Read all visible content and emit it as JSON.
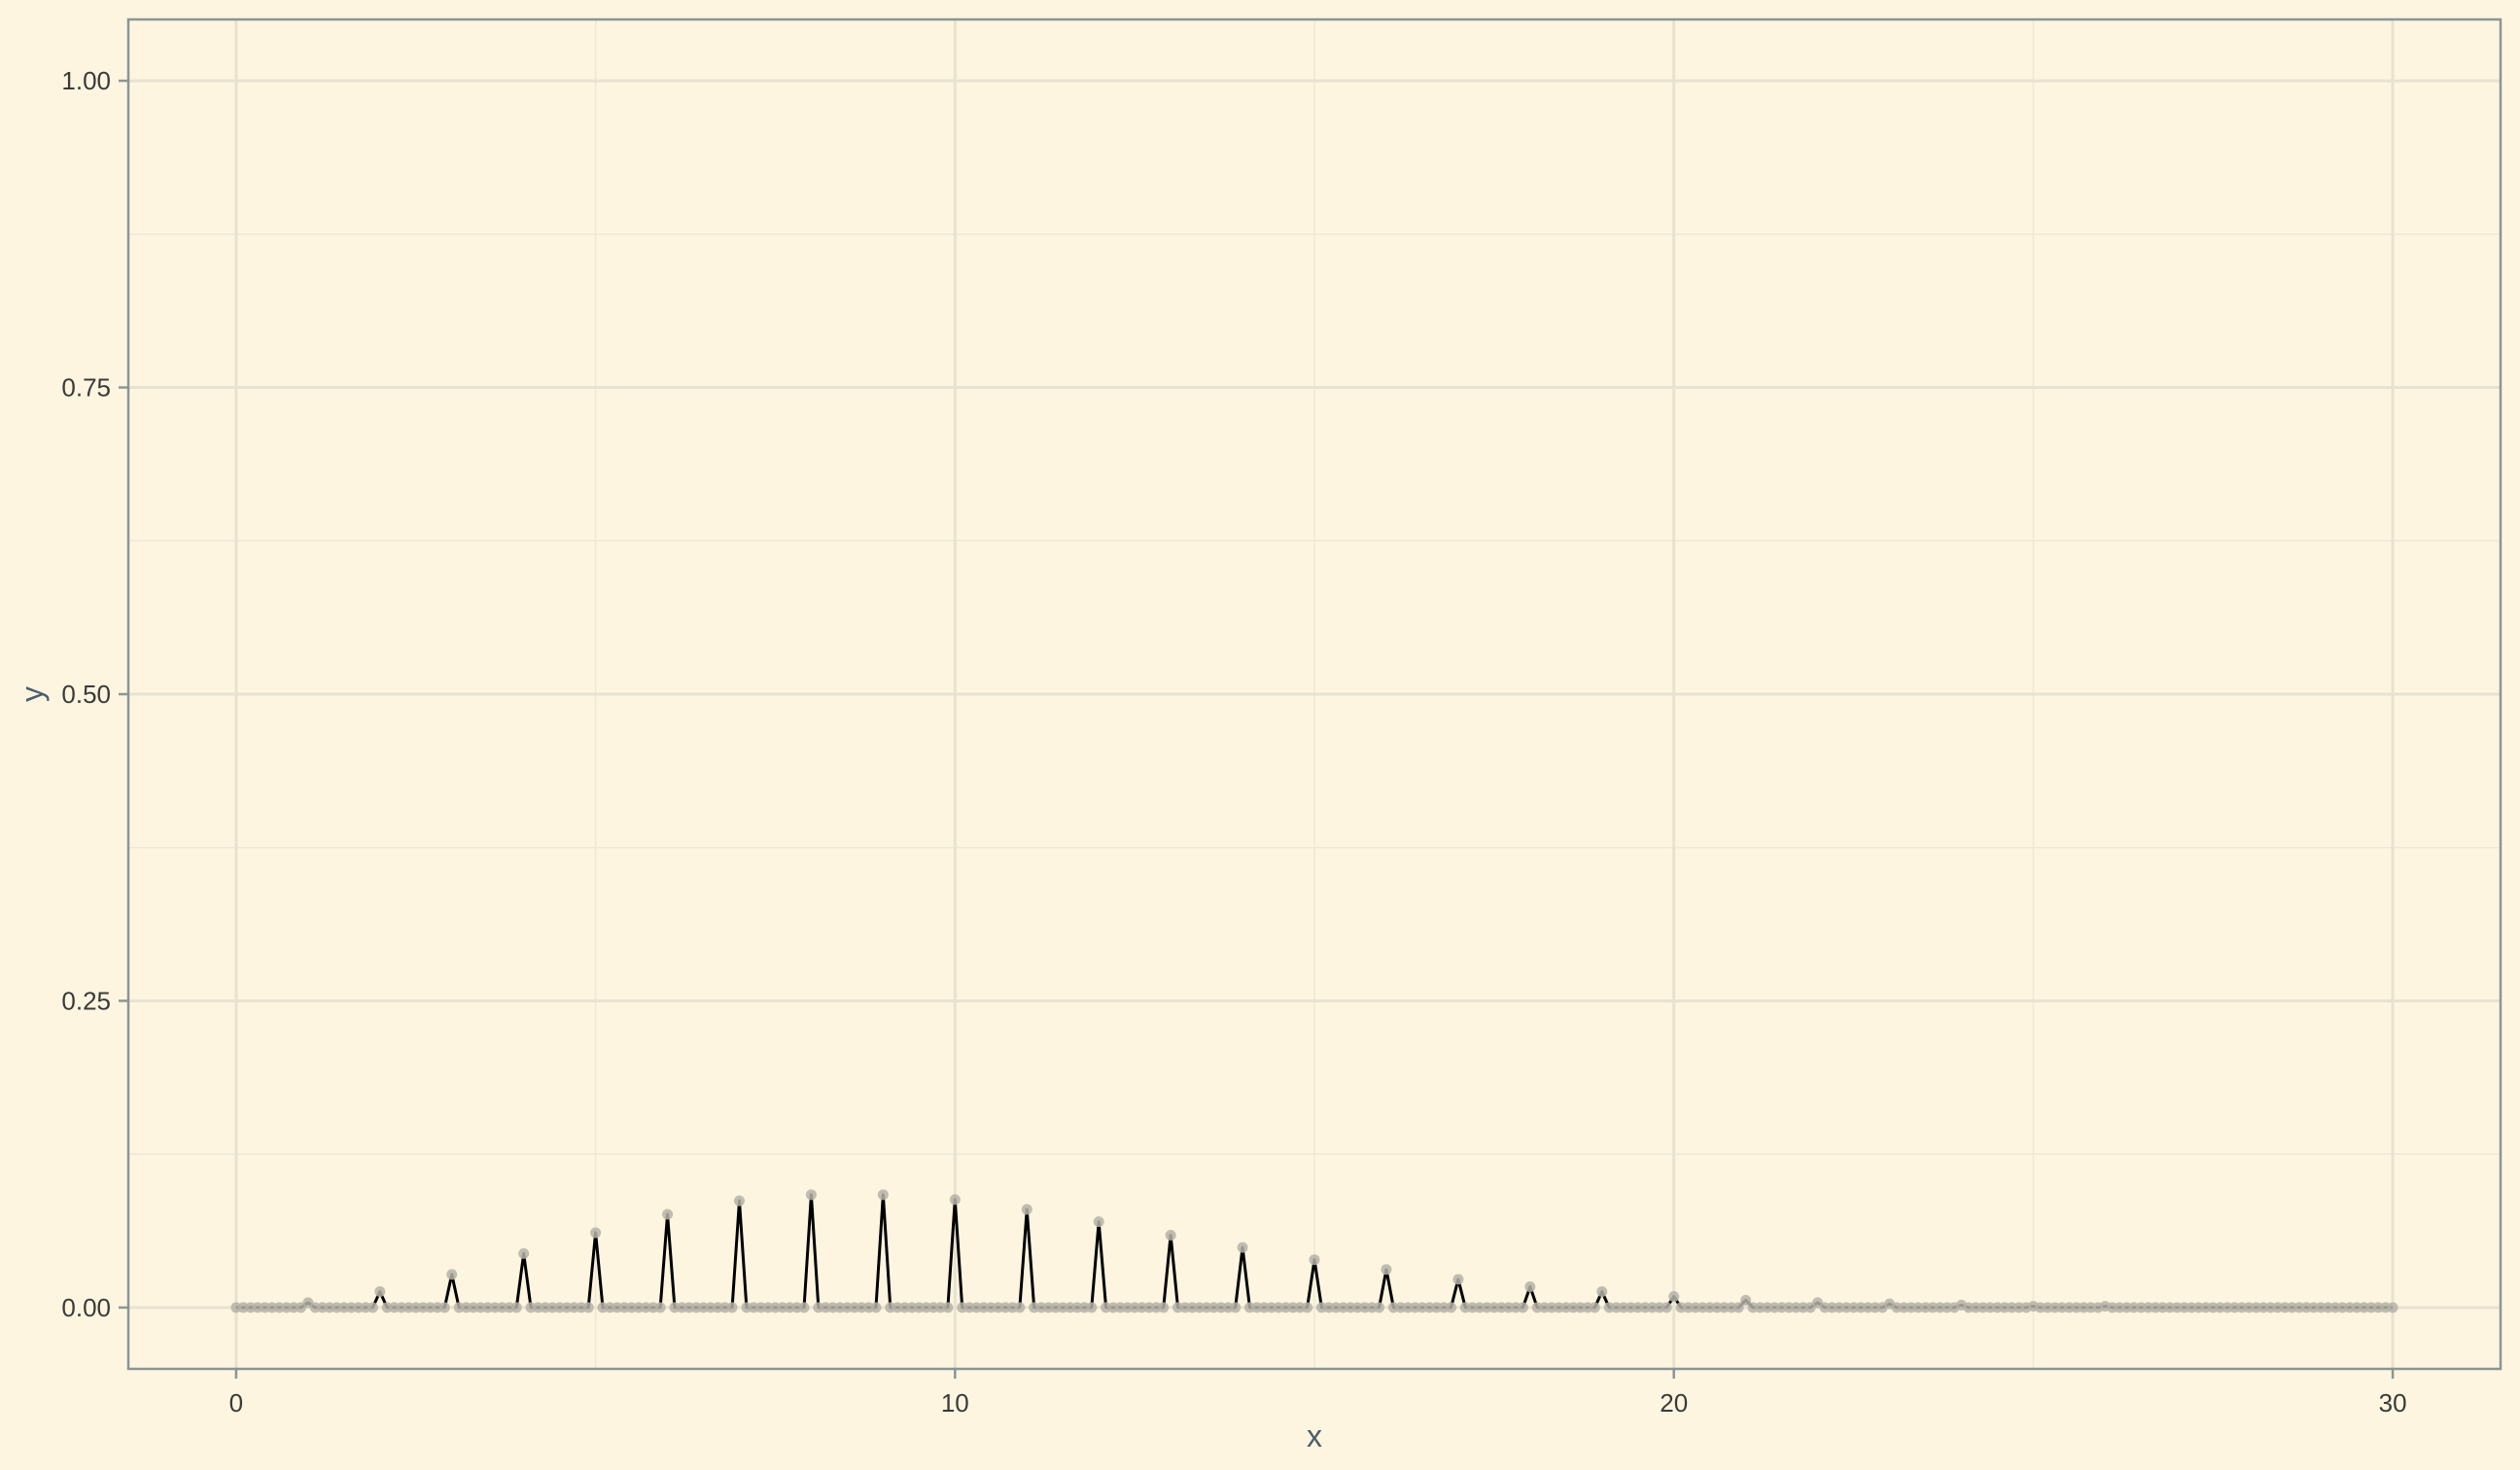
{
  "chart_data": {
    "type": "line",
    "xlabel": "x",
    "ylabel": "y",
    "xlim": [
      -1.5,
      31.5
    ],
    "ylim": [
      -0.05,
      1.05
    ],
    "x_ticks": [
      0,
      10,
      20,
      30
    ],
    "x_tick_labels": [
      "0",
      "10",
      "20",
      "30"
    ],
    "y_ticks": [
      0,
      0.25,
      0.5,
      0.75,
      1.0
    ],
    "y_tick_labels": [
      "0.00",
      "0.25",
      "0.50",
      "0.75",
      "1.00"
    ],
    "grid": true,
    "colors": {
      "background": "#fdf5df",
      "panel_border": "#8a9597",
      "grid_major": "#e8e2d0",
      "grid_minor": "#efe8d6",
      "line": "#000000",
      "points": "#b5b2a8"
    },
    "series": [
      {
        "points_per_unit": 10,
        "peaks": [
          {
            "x": 0,
            "y": 0.0
          },
          {
            "x": 1,
            "y": 0.004
          },
          {
            "x": 2,
            "y": 0.013
          },
          {
            "x": 3,
            "y": 0.027
          },
          {
            "x": 4,
            "y": 0.044
          },
          {
            "x": 5,
            "y": 0.061
          },
          {
            "x": 6,
            "y": 0.076
          },
          {
            "x": 7,
            "y": 0.087
          },
          {
            "x": 8,
            "y": 0.092
          },
          {
            "x": 9,
            "y": 0.092
          },
          {
            "x": 10,
            "y": 0.088
          },
          {
            "x": 11,
            "y": 0.08
          },
          {
            "x": 12,
            "y": 0.07
          },
          {
            "x": 13,
            "y": 0.059
          },
          {
            "x": 14,
            "y": 0.049
          },
          {
            "x": 15,
            "y": 0.039
          },
          {
            "x": 16,
            "y": 0.031
          },
          {
            "x": 17,
            "y": 0.023
          },
          {
            "x": 18,
            "y": 0.017
          },
          {
            "x": 19,
            "y": 0.013
          },
          {
            "x": 20,
            "y": 0.009
          },
          {
            "x": 21,
            "y": 0.006
          },
          {
            "x": 22,
            "y": 0.004
          },
          {
            "x": 23,
            "y": 0.003
          },
          {
            "x": 24,
            "y": 0.002
          },
          {
            "x": 25,
            "y": 0.001
          },
          {
            "x": 26,
            "y": 0.001
          },
          {
            "x": 27,
            "y": 0.0
          },
          {
            "x": 28,
            "y": 0.0
          },
          {
            "x": 29,
            "y": 0.0
          },
          {
            "x": 30,
            "y": 0.0
          }
        ]
      }
    ]
  }
}
